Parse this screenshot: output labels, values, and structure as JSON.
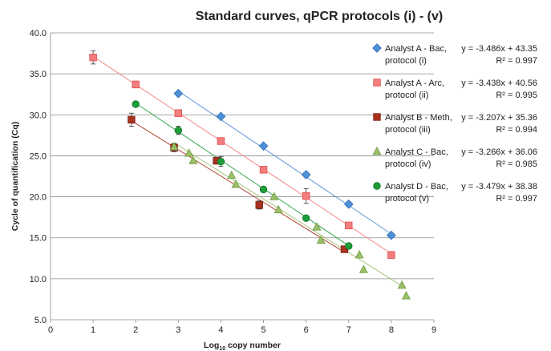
{
  "chart_data": {
    "type": "scatter",
    "title": "Standard curves, qPCR protocols (i) - (v)",
    "xlabel_main": "Log",
    "xlabel_sub": "10",
    "xlabel_rest": " copy number",
    "ylabel": "Cycle of quantification (Cq)",
    "xlim": [
      0,
      9
    ],
    "ylim": [
      5.0,
      40.0
    ],
    "xticks": [
      "0",
      "1",
      "2",
      "3",
      "4",
      "5",
      "6",
      "7",
      "8",
      "9"
    ],
    "yticks": [
      "5.0",
      "10.0",
      "15.0",
      "20.0",
      "25.0",
      "30.0",
      "35.0",
      "40.0"
    ],
    "grid": true,
    "legend_position": "right",
    "series": [
      {
        "name_line1": "Analyst A - Bac,",
        "name_line2": "protocol (i)",
        "equation": "y = -3.486x + 43.35",
        "r2": "R² = 0.997",
        "marker": "diamond",
        "color": "#4f8fd6",
        "stroke": "#2e6fb8",
        "slope": -3.486,
        "intercept": 43.35,
        "fit_range": [
          3,
          8
        ],
        "x": [
          3,
          4,
          5,
          6,
          7,
          8
        ],
        "y": [
          32.6,
          29.8,
          26.2,
          22.7,
          19.1,
          15.3
        ],
        "err": [
          0,
          0.2,
          0.2,
          0.3,
          0.3,
          0
        ]
      },
      {
        "name_line1": "Analyst A - Arc,",
        "name_line2": "protocol (ii)",
        "equation": "y = -3.438x + 40.56",
        "r2": "R² = 0.995",
        "marker": "square",
        "color": "#f47e7e",
        "stroke": "#e04a4a",
        "slope": -3.438,
        "intercept": 40.56,
        "fit_range": [
          1,
          8
        ],
        "x": [
          1,
          2,
          3,
          4,
          5,
          6,
          7,
          8
        ],
        "y": [
          37.0,
          33.7,
          30.2,
          26.8,
          23.3,
          20.1,
          16.5,
          12.9
        ],
        "err": [
          0.8,
          0.4,
          0.3,
          0.3,
          0.2,
          0.9,
          0.2,
          0.2
        ]
      },
      {
        "name_line1": "Analyst B - Meth,",
        "name_line2": "protocol (iii)",
        "equation": "y = -3.207x + 35.36",
        "r2": "R² = 0.994",
        "marker": "square",
        "color": "#a8321e",
        "stroke": "#7a2212",
        "slope": -3.207,
        "intercept": 35.36,
        "fit_range": [
          1.9,
          6.9
        ],
        "x": [
          1.9,
          2.9,
          3.9,
          4.9,
          6.9
        ],
        "y": [
          29.4,
          26.0,
          24.4,
          19.0,
          13.6
        ],
        "err": [
          0.8,
          0.5,
          0.4,
          0.5,
          0.4
        ]
      },
      {
        "name_line1": "Analyst C - Bac,",
        "name_line2": "protocol (iv)",
        "equation": "y = -3.266x + 36.06",
        "r2": "R² = 0.985",
        "marker": "triangle",
        "color": "#9bbf6a",
        "stroke": "#6f9a3e",
        "slope": -3.266,
        "intercept": 36.06,
        "fit_range": [
          2.9,
          8.3
        ],
        "x": [
          2.9,
          3.25,
          3.35,
          4.25,
          4.35,
          5.25,
          5.35,
          6.25,
          6.35,
          7.25,
          7.35,
          8.25,
          8.35
        ],
        "y": [
          26.1,
          25.3,
          24.4,
          22.6,
          21.5,
          20.0,
          18.4,
          16.3,
          14.7,
          12.9,
          11.1,
          9.2,
          7.9
        ],
        "err": [
          0,
          0,
          0,
          0,
          0,
          0,
          0,
          0,
          0,
          0,
          0,
          0,
          0
        ]
      },
      {
        "name_line1": "Analyst D - Bac,",
        "name_line2": "protocol (v)",
        "equation": "y = -3.479x + 38.38",
        "r2": "R² = 0.997",
        "marker": "circle",
        "color": "#1e9e3a",
        "stroke": "#0f6e22",
        "slope": -3.479,
        "intercept": 38.38,
        "fit_range": [
          2,
          7
        ],
        "x": [
          2,
          3,
          4,
          5,
          6,
          7
        ],
        "y": [
          31.3,
          28.1,
          24.3,
          20.9,
          17.4,
          14.0
        ],
        "err": [
          0,
          0.5,
          0.6,
          0,
          0,
          0
        ]
      }
    ]
  }
}
